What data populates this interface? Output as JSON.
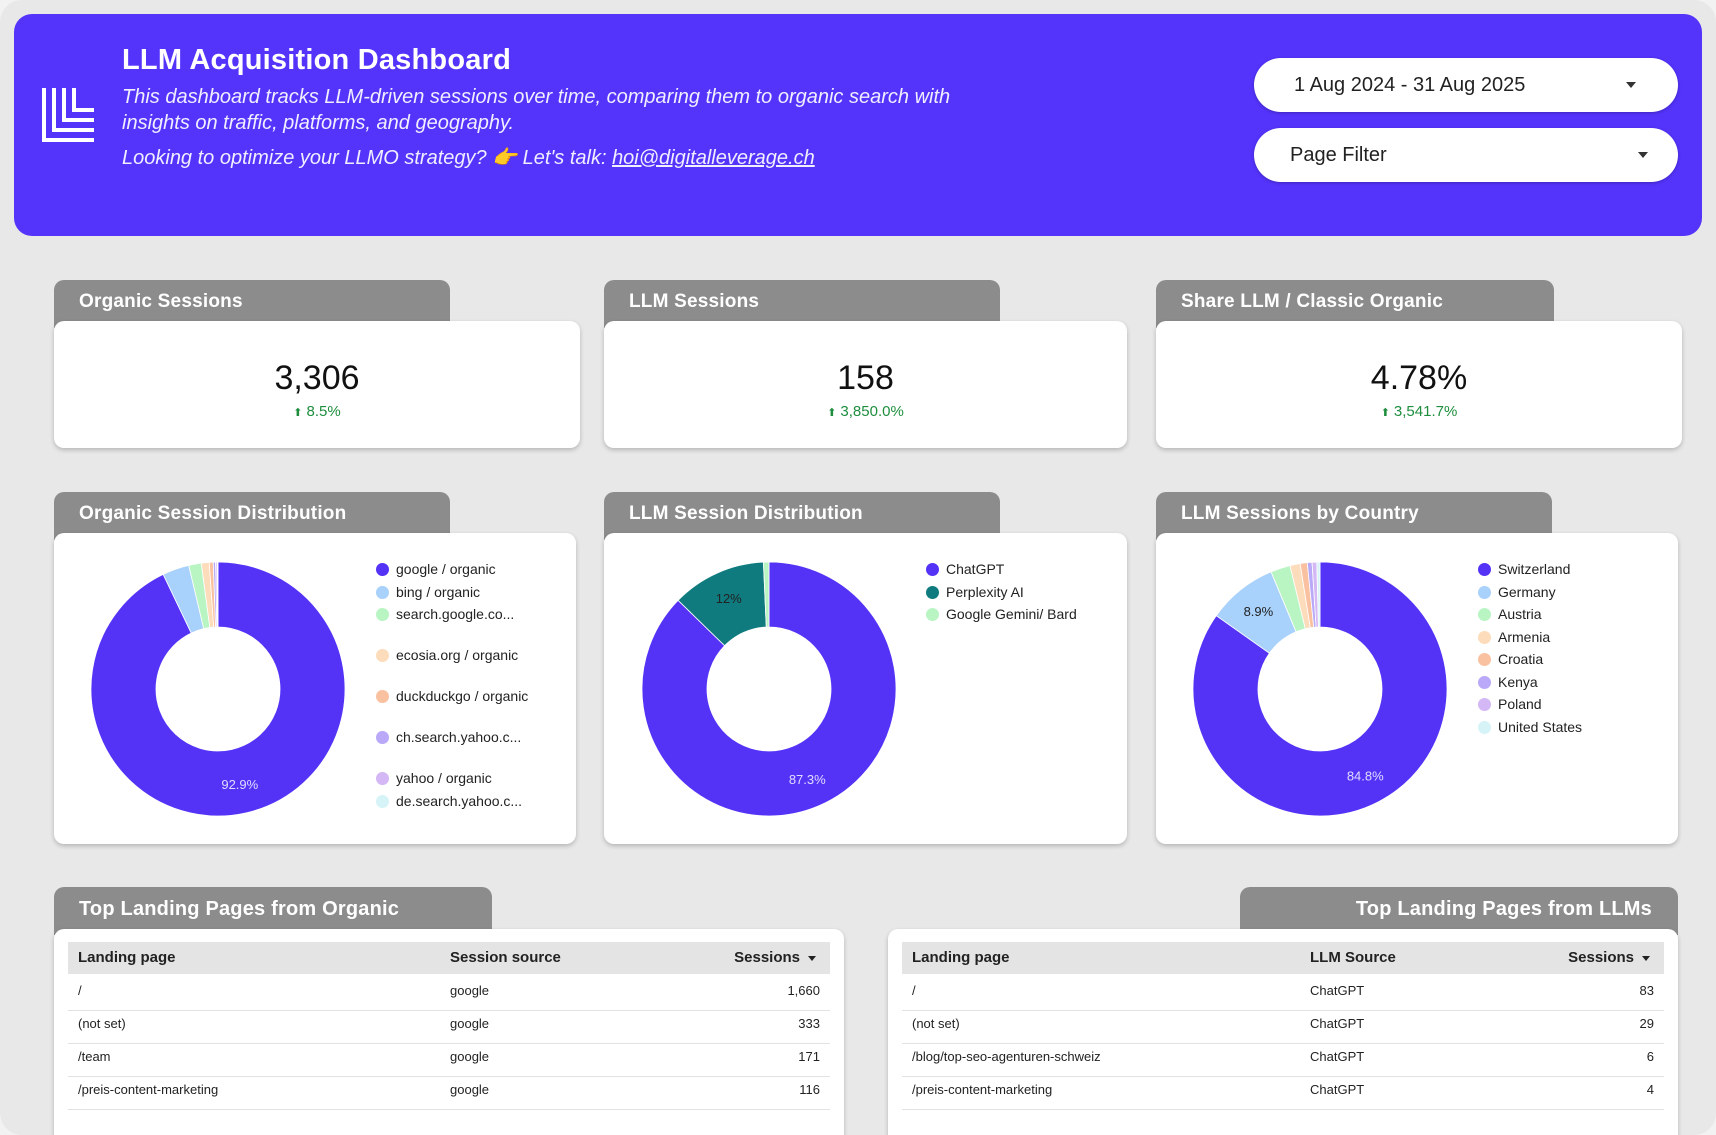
{
  "header": {
    "title": "LLM Acquisition Dashboard",
    "description": "This dashboard tracks LLM-driven sessions over time, comparing them to organic search with insights on traffic, platforms, and geography.",
    "contact_prefix": "Looking to optimize your LLMO strategy? 👉 Let's talk: ",
    "contact_email": "hoi@digitalleverage.ch",
    "date_range": "1 Aug 2024 - 31 Aug 2025",
    "page_filter": "Page Filter",
    "logo_icon": "stacked-lines-logo-icon"
  },
  "kpis": [
    {
      "title": "Organic Sessions",
      "value": "3,306",
      "delta": "8.5%"
    },
    {
      "title": "LLM Sessions",
      "value": "158",
      "delta": "3,850.0%"
    },
    {
      "title": "Share LLM / Classic Organic Sessions",
      "value": "4.78%",
      "delta": "3,541.7%"
    }
  ],
  "donut_titles": [
    "Organic Session Distribution",
    "LLM Session Distribution",
    "LLM Sessions by Country"
  ],
  "chart_data": [
    {
      "type": "pie",
      "title": "Organic Session Distribution",
      "labels": [
        "google / organic",
        "bing / organic",
        "search.google.co...",
        "ecosia.org / organic",
        "duckduckgo / organic",
        "ch.search.yahoo.c...",
        "yahoo / organic",
        "de.search.yahoo.c..."
      ],
      "values": [
        92.9,
        3.4,
        1.6,
        1.0,
        0.5,
        0.3,
        0.2,
        0.1
      ],
      "colors": [
        "#5433f6",
        "#a8d1fb",
        "#b9f5c3",
        "#fcdcba",
        "#f9c1a0",
        "#b9a9f8",
        "#d4b7f5",
        "#d6f3f7"
      ],
      "visible_labels": [
        "92.9%",
        "",
        "",
        "",
        "",
        "",
        "",
        ""
      ]
    },
    {
      "type": "pie",
      "title": "LLM Session Distribution",
      "labels": [
        "ChatGPT",
        "Perplexity AI",
        "Google Gemini/ Bard"
      ],
      "values": [
        87.3,
        12,
        0.7
      ],
      "colors": [
        "#5433f6",
        "#0f7b7e",
        "#b9f5c3"
      ],
      "visible_labels": [
        "87.3%",
        "12%",
        ""
      ]
    },
    {
      "type": "pie",
      "title": "LLM Sessions by Country",
      "labels": [
        "Switzerland",
        "Germany",
        "Austria",
        "Armenia",
        "Croatia",
        "Kenya",
        "Poland",
        "United States"
      ],
      "values": [
        84.8,
        8.9,
        2.5,
        1.3,
        0.9,
        0.6,
        0.6,
        0.4
      ],
      "colors": [
        "#5433f6",
        "#a8d1fb",
        "#b9f5c3",
        "#fcdcba",
        "#f9c1a0",
        "#b9a9f8",
        "#d4b7f5",
        "#d6f3f7"
      ],
      "visible_labels": [
        "84.8%",
        "8.9%",
        "",
        "",
        "",
        "",
        "",
        ""
      ]
    }
  ],
  "tables": [
    {
      "title": "Top Landing Pages from Organic Search",
      "columns": [
        "Landing page",
        "Session source",
        "Sessions"
      ],
      "rows": [
        [
          "/",
          "google",
          "1,660"
        ],
        [
          "(not set)",
          "google",
          "333"
        ],
        [
          "/team",
          "google",
          "171"
        ],
        [
          "/preis-content-marketing",
          "google",
          "116"
        ]
      ]
    },
    {
      "title": "Top Landing Pages from LLMs",
      "columns": [
        "Landing page",
        "LLM Source",
        "Sessions"
      ],
      "rows": [
        [
          "/",
          "ChatGPT",
          "83"
        ],
        [
          "(not set)",
          "ChatGPT",
          "29"
        ],
        [
          "/blog/top-seo-agenturen-schweiz",
          "ChatGPT",
          "6"
        ],
        [
          "/preis-content-marketing",
          "ChatGPT",
          "4"
        ]
      ]
    }
  ]
}
